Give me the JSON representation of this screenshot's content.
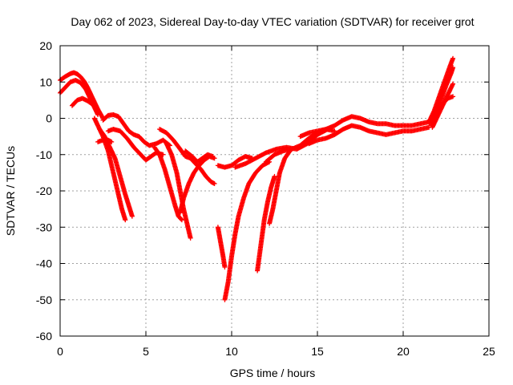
{
  "chart_data": {
    "type": "scatter",
    "title": "Day 062 of 2023, Sidereal Day-to-day VTEC variation (SDTVAR) for receiver grot",
    "xlabel": "GPS time / hours",
    "ylabel": "SDTVAR / TECUs",
    "xlim": [
      0,
      25
    ],
    "ylim": [
      -60,
      20
    ],
    "xticks": [
      "0",
      "5",
      "10",
      "15",
      "20",
      "25"
    ],
    "yticks": [
      "20",
      "10",
      "0",
      "-10",
      "-20",
      "-30",
      "-40",
      "-50",
      "-60"
    ],
    "grid": true,
    "marker": "+",
    "color": "#ff0000",
    "series": [
      {
        "x": [
          0.0,
          0.3,
          0.6,
          0.8,
          1.0,
          1.2,
          1.4,
          1.6,
          1.8,
          2.0,
          2.2,
          2.5
        ],
        "y": [
          10.5,
          11.5,
          12.3,
          12.6,
          12.2,
          11.4,
          10.2,
          8.5,
          6.5,
          4.5,
          2.5,
          0.0
        ]
      },
      {
        "x": [
          0.0,
          0.3,
          0.6,
          0.9,
          1.2,
          1.5,
          1.8,
          2.0,
          2.2
        ],
        "y": [
          7.0,
          8.5,
          10.0,
          10.5,
          9.8,
          8.0,
          5.0,
          3.0,
          1.0
        ]
      },
      {
        "x": [
          0.7,
          1.0,
          1.3,
          1.6,
          1.9,
          2.2
        ],
        "y": [
          3.5,
          5.0,
          5.5,
          4.8,
          3.8,
          2.5
        ]
      },
      {
        "x": [
          2.0,
          2.2,
          2.5,
          2.8,
          3.1,
          3.4,
          3.6,
          3.8
        ],
        "y": [
          0.0,
          -2.0,
          -5.0,
          -9.0,
          -15.0,
          -21.0,
          -25.0,
          -28.0
        ]
      },
      {
        "x": [
          2.3,
          2.6,
          2.9,
          3.2,
          3.5,
          3.8,
          4.0,
          4.2
        ],
        "y": [
          -3.0,
          -5.0,
          -8.0,
          -11.0,
          -16.0,
          -21.0,
          -24.0,
          -27.0
        ]
      },
      {
        "x": [
          2.5,
          2.8,
          3.1,
          3.4,
          3.7,
          4.0,
          4.3,
          4.6,
          4.9,
          5.2,
          5.6,
          6.0,
          6.4
        ],
        "y": [
          -0.5,
          0.8,
          1.0,
          0.5,
          -1.5,
          -3.5,
          -4.5,
          -5.0,
          -6.5,
          -7.5,
          -7.0,
          -6.0,
          -7.5
        ]
      },
      {
        "x": [
          2.8,
          3.1,
          3.5,
          3.9,
          4.3,
          4.7,
          5.0,
          5.3,
          5.6,
          6.0
        ],
        "y": [
          -3.5,
          -3.0,
          -3.5,
          -5.5,
          -8.0,
          -10.0,
          -11.5,
          -10.5,
          -9.5,
          -10.0
        ]
      },
      {
        "x": [
          2.2,
          2.5,
          2.8,
          3.0
        ],
        "y": [
          -6.5,
          -6.0,
          -6.0,
          -6.5
        ]
      },
      {
        "x": [
          5.5,
          5.8,
          6.1,
          6.4,
          6.7,
          6.9,
          7.1
        ],
        "y": [
          -8.0,
          -10.0,
          -14.0,
          -19.0,
          -24.0,
          -27.0,
          -28.0
        ]
      },
      {
        "x": [
          5.8,
          6.2,
          6.6,
          7.0,
          7.3,
          7.6,
          7.9,
          8.2,
          8.5,
          8.8,
          9.0
        ],
        "y": [
          -3.0,
          -4.0,
          -6.0,
          -8.5,
          -10.5,
          -11.0,
          -12.5,
          -14.0,
          -16.0,
          -17.5,
          -18.0
        ]
      },
      {
        "x": [
          6.2,
          6.5,
          6.8,
          7.0,
          7.2,
          7.4,
          7.5,
          7.6
        ],
        "y": [
          -7.0,
          -10.0,
          -15.0,
          -20.0,
          -25.0,
          -29.0,
          -31.0,
          -33.0
        ]
      },
      {
        "x": [
          7.0,
          7.2,
          7.5,
          7.8,
          8.1,
          8.4,
          8.7,
          9.0
        ],
        "y": [
          -26.0,
          -22.0,
          -18.0,
          -15.0,
          -13.0,
          -11.5,
          -10.5,
          -11.0
        ]
      },
      {
        "x": [
          7.3,
          7.7,
          8.0,
          8.3,
          8.6,
          8.9
        ],
        "y": [
          -9.0,
          -10.5,
          -12.0,
          -11.0,
          -10.0,
          -10.5
        ]
      },
      {
        "x": [
          9.2,
          9.35,
          9.5,
          9.6
        ],
        "y": [
          -30.0,
          -34.0,
          -38.0,
          -41.0
        ]
      },
      {
        "x": [
          9.2,
          9.6,
          10.0,
          10.4,
          10.8,
          11.2
        ],
        "y": [
          -13.0,
          -13.5,
          -13.0,
          -11.5,
          -10.5,
          -11.0
        ]
      },
      {
        "x": [
          9.6,
          9.8,
          10.0,
          10.2,
          10.4,
          10.7,
          11.0,
          11.4,
          11.8,
          12.2
        ],
        "y": [
          -50.0,
          -45.0,
          -38.0,
          -32.0,
          -27.0,
          -22.0,
          -18.0,
          -15.0,
          -13.0,
          -12.0
        ]
      },
      {
        "x": [
          11.5,
          11.7,
          11.9,
          12.1,
          12.3,
          12.5
        ],
        "y": [
          -42.0,
          -35.0,
          -28.0,
          -23.0,
          -19.0,
          -16.0
        ]
      },
      {
        "x": [
          12.2,
          12.4,
          12.6,
          12.8,
          13.1,
          13.4
        ],
        "y": [
          -29.0,
          -25.0,
          -20.0,
          -15.0,
          -11.0,
          -9.0
        ]
      },
      {
        "x": [
          10.2,
          10.8,
          11.4,
          12.0,
          12.6,
          13.2,
          13.8,
          14.4,
          15.0,
          15.6
        ],
        "y": [
          -13.5,
          -12.5,
          -11.0,
          -9.5,
          -8.5,
          -8.0,
          -8.5,
          -7.0,
          -4.5,
          -3.0
        ]
      },
      {
        "x": [
          12.0,
          12.5,
          13.0,
          13.5,
          14.0,
          14.5,
          15.0,
          15.5,
          16.0
        ],
        "y": [
          -12.0,
          -10.0,
          -9.0,
          -8.5,
          -7.5,
          -5.5,
          -4.0,
          -3.0,
          -3.5
        ]
      },
      {
        "x": [
          14.0,
          14.5,
          15.0,
          15.5,
          16.0,
          16.5,
          17.0,
          17.5,
          18.0,
          18.5,
          19.0,
          19.5,
          20.0,
          20.5,
          21.0,
          21.5
        ],
        "y": [
          -5.0,
          -4.0,
          -3.5,
          -3.0,
          -2.0,
          -0.5,
          0.5,
          0.0,
          -1.0,
          -1.5,
          -1.5,
          -2.0,
          -2.0,
          -2.0,
          -1.5,
          -1.0
        ]
      },
      {
        "x": [
          14.5,
          15.0,
          15.5,
          16.0,
          16.5,
          17.0,
          17.5,
          18.0,
          18.5,
          19.0,
          19.5,
          20.0,
          20.5,
          21.0,
          21.5
        ],
        "y": [
          -7.0,
          -6.0,
          -5.5,
          -4.5,
          -3.0,
          -2.0,
          -2.5,
          -3.5,
          -4.0,
          -4.5,
          -4.0,
          -3.5,
          -3.5,
          -3.0,
          -2.5
        ]
      },
      {
        "x": [
          21.5,
          21.8,
          22.1,
          22.4,
          22.7,
          22.9
        ],
        "y": [
          -1.0,
          2.0,
          6.0,
          10.0,
          14.0,
          16.5
        ]
      },
      {
        "x": [
          21.6,
          21.9,
          22.2,
          22.5,
          22.8,
          22.9
        ],
        "y": [
          -2.0,
          1.0,
          5.0,
          9.0,
          12.5,
          14.0
        ]
      },
      {
        "x": [
          21.7,
          22.0,
          22.3,
          22.6,
          22.9
        ],
        "y": [
          -2.5,
          0.5,
          3.5,
          6.5,
          9.5
        ]
      },
      {
        "x": [
          22.0,
          22.3,
          22.6,
          22.9
        ],
        "y": [
          2.0,
          4.0,
          5.5,
          6.0
        ]
      }
    ]
  }
}
